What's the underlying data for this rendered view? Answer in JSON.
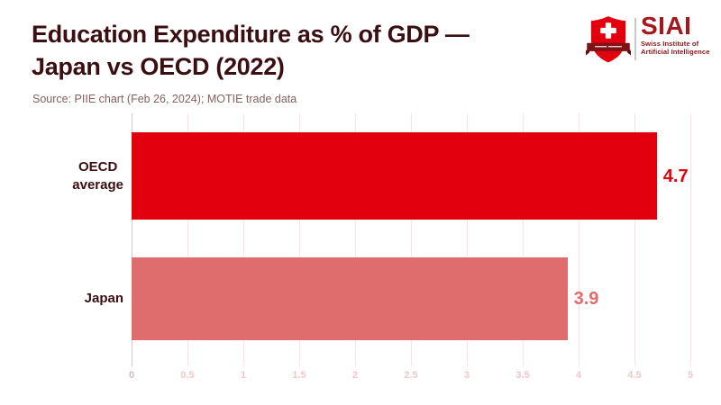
{
  "page": {
    "background": "#FFFFFF"
  },
  "header": {
    "title_line1": "Education Expenditure as % of GDP —",
    "title_line2": "Japan vs OECD (2022)",
    "source": "Source: PIIE chart (Feb 26, 2024); MOTIE trade data",
    "title_color": "#3B0F12",
    "source_color": "#85615F"
  },
  "logo": {
    "brand": "SIAI",
    "subtitle_line1": "Swiss Institute of",
    "subtitle_line2": "Artificial Intelligence",
    "brand_color": "#A5171C",
    "shield_color": "#E2000F",
    "ribbon_color": "#7E1216",
    "cross_color": "#FFFFFF"
  },
  "chart_data": {
    "type": "bar",
    "orientation": "horizontal",
    "title": "Education Expenditure as % of GDP — Japan vs OECD (2022)",
    "xlabel": "",
    "ylabel": "",
    "categories": [
      "OECD average",
      "Japan"
    ],
    "category_display": [
      "OECD\naverage",
      "Japan"
    ],
    "values": [
      4.7,
      3.9
    ],
    "value_labels": [
      "4.7",
      "3.9"
    ],
    "bar_colors": [
      "#E2000F",
      "#E06D6D"
    ],
    "value_label_colors": [
      "#E2000F",
      "#E06D6D"
    ],
    "x_ticks": [
      0,
      0.5,
      1,
      1.5,
      2,
      2.5,
      3,
      3.5,
      4,
      4.5,
      5
    ],
    "xlim": [
      0,
      5
    ],
    "grid": true,
    "legend": false,
    "gridline_color": "#FAE3E5",
    "zero_line_color": "#D6CACA",
    "tick_label_color": "#F2C6C9",
    "zero_tick_label_color": "#CBBFBF",
    "category_label_color": "#3B0F12"
  }
}
